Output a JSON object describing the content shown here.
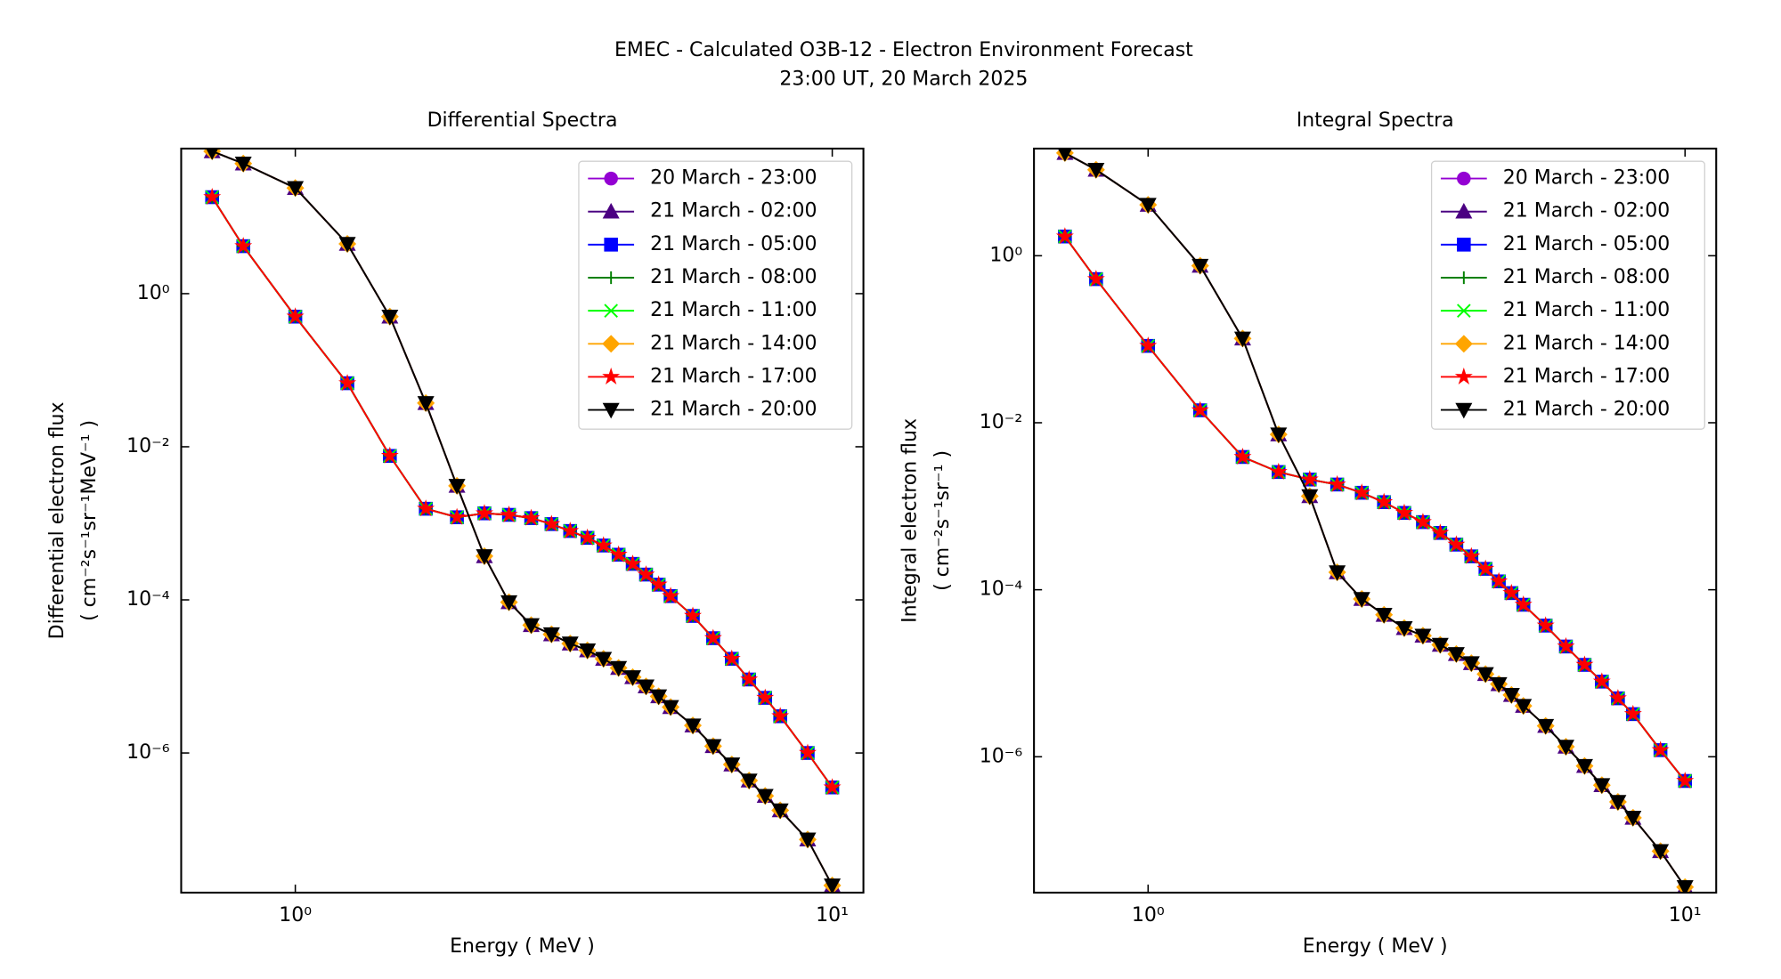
{
  "figure": {
    "title": "EMEC - Calculated O3B-12 - Electron Environment Forecast",
    "subtitle": "23:00 UT, 20 March 2025"
  },
  "chart_data": [
    {
      "type": "line",
      "title": "Differential Spectra",
      "xlabel": "Energy ( MeV )",
      "ylabel": [
        "Differential electron flux",
        "( cm⁻²s⁻¹sr⁻¹MeV⁻¹ )"
      ],
      "xscale": "log",
      "yscale": "log",
      "xlim": [
        0.613,
        11.43
      ],
      "ylim": [
        1.5e-08,
        78.5
      ],
      "xticks": [
        {
          "value": 1,
          "label": "10⁰"
        },
        {
          "value": 10,
          "label": "10¹"
        }
      ],
      "yticks": [
        {
          "value": 1,
          "label": "10⁰"
        },
        {
          "value": 0.01,
          "label": "10⁻²"
        },
        {
          "value": 0.0001,
          "label": "10⁻⁴"
        },
        {
          "value": 1e-06,
          "label": "10⁻⁶"
        }
      ],
      "legend": "upper right",
      "x": [
        0.7,
        0.8,
        1,
        1.25,
        1.5,
        1.75,
        2,
        2.25,
        2.5,
        2.75,
        3,
        3.25,
        3.5,
        3.75,
        4,
        4.25,
        4.5,
        4.75,
        5,
        5.5,
        6,
        6.5,
        7,
        7.5,
        8,
        9,
        10
      ],
      "series": [
        {
          "name": "20 March - 23:00",
          "color": "#9400d3",
          "marker": "circle",
          "values": [
            72.4,
            50.1,
            24,
            4.47,
            0.501,
            0.0372,
            0.00309,
            0.000372,
            9.33e-05,
            4.68e-05,
            3.55e-05,
            2.69e-05,
            2.19e-05,
            1.7e-05,
            1.29e-05,
            9.77e-06,
            7.41e-06,
            5.5e-06,
            3.98e-06,
            2.29e-06,
            1.23e-06,
            7.08e-07,
            4.37e-07,
            2.75e-07,
            1.78e-07,
            7.41e-08,
            1.86e-08
          ]
        },
        {
          "name": "21 March - 02:00",
          "color": "#4b0082",
          "marker": "triangle-up",
          "values": [
            72.4,
            50.1,
            24,
            4.47,
            0.501,
            0.0372,
            0.00309,
            0.000372,
            9.33e-05,
            4.68e-05,
            3.55e-05,
            2.69e-05,
            2.19e-05,
            1.7e-05,
            1.29e-05,
            9.77e-06,
            7.41e-06,
            5.5e-06,
            3.98e-06,
            2.29e-06,
            1.23e-06,
            7.08e-07,
            4.37e-07,
            2.75e-07,
            1.78e-07,
            7.41e-08,
            1.86e-08
          ]
        },
        {
          "name": "21 March - 05:00",
          "color": "#0000ff",
          "marker": "square",
          "values": [
            18.2,
            4.17,
            0.501,
            0.0676,
            0.00759,
            0.00155,
            0.0012,
            0.00135,
            0.00129,
            0.00117,
            0.000977,
            0.000794,
            0.000646,
            0.000513,
            0.000389,
            0.000295,
            0.000214,
            0.000158,
            0.000112,
            6.17e-05,
            3.16e-05,
            1.7e-05,
            9.12e-06,
            5.25e-06,
            3.02e-06,
            1e-06,
            3.55e-07
          ]
        },
        {
          "name": "21 March - 08:00",
          "color": "#008000",
          "marker": "plus",
          "values": [
            18.2,
            4.17,
            0.501,
            0.0676,
            0.00759,
            0.00155,
            0.0012,
            0.00135,
            0.00129,
            0.00117,
            0.000977,
            0.000794,
            0.000646,
            0.000513,
            0.000389,
            0.000295,
            0.000214,
            0.000158,
            0.000112,
            6.17e-05,
            3.16e-05,
            1.7e-05,
            9.12e-06,
            5.25e-06,
            3.02e-06,
            1e-06,
            3.55e-07
          ]
        },
        {
          "name": "21 March - 11:00",
          "color": "#00ff00",
          "marker": "x",
          "values": [
            18.2,
            4.17,
            0.501,
            0.0676,
            0.00759,
            0.00155,
            0.0012,
            0.00135,
            0.00129,
            0.00117,
            0.000977,
            0.000794,
            0.000646,
            0.000513,
            0.000389,
            0.000295,
            0.000214,
            0.000158,
            0.000112,
            6.17e-05,
            3.16e-05,
            1.7e-05,
            9.12e-06,
            5.25e-06,
            3.02e-06,
            1e-06,
            3.55e-07
          ]
        },
        {
          "name": "21 March - 14:00",
          "color": "#ffa500",
          "marker": "diamond",
          "values": [
            72.4,
            50.1,
            24,
            4.47,
            0.501,
            0.0372,
            0.00309,
            0.000372,
            9.33e-05,
            4.68e-05,
            3.55e-05,
            2.69e-05,
            2.19e-05,
            1.7e-05,
            1.29e-05,
            9.77e-06,
            7.41e-06,
            5.5e-06,
            3.98e-06,
            2.29e-06,
            1.23e-06,
            7.08e-07,
            4.37e-07,
            2.75e-07,
            1.78e-07,
            7.41e-08,
            1.86e-08
          ]
        },
        {
          "name": "21 March - 17:00",
          "color": "#ff0000",
          "marker": "star",
          "values": [
            18.2,
            4.17,
            0.501,
            0.0676,
            0.00759,
            0.00155,
            0.0012,
            0.00135,
            0.00129,
            0.00117,
            0.000977,
            0.000794,
            0.000646,
            0.000513,
            0.000389,
            0.000295,
            0.000214,
            0.000158,
            0.000112,
            6.17e-05,
            3.16e-05,
            1.7e-05,
            9.12e-06,
            5.25e-06,
            3.02e-06,
            1e-06,
            3.55e-07
          ]
        },
        {
          "name": "21 March - 20:00",
          "color": "#000000",
          "marker": "triangle-down",
          "values": [
            72.4,
            50.1,
            24,
            4.47,
            0.501,
            0.0372,
            0.00309,
            0.000372,
            9.33e-05,
            4.68e-05,
            3.55e-05,
            2.69e-05,
            2.19e-05,
            1.7e-05,
            1.29e-05,
            9.77e-06,
            7.41e-06,
            5.5e-06,
            3.98e-06,
            2.29e-06,
            1.23e-06,
            7.08e-07,
            4.37e-07,
            2.75e-07,
            1.78e-07,
            7.41e-08,
            1.86e-08
          ]
        }
      ]
    },
    {
      "type": "line",
      "title": "Integral Spectra",
      "xlabel": "Energy ( MeV )",
      "ylabel": [
        "Integral electron flux",
        "( cm⁻²s⁻¹sr⁻¹ )"
      ],
      "xscale": "log",
      "yscale": "log",
      "xlim": [
        0.613,
        11.43
      ],
      "ylim": [
        2.36e-08,
        19.2
      ],
      "xticks": [
        {
          "value": 1,
          "label": "10⁰"
        },
        {
          "value": 10,
          "label": "10¹"
        }
      ],
      "yticks": [
        {
          "value": 1,
          "label": "10⁰"
        },
        {
          "value": 0.01,
          "label": "10⁻²"
        },
        {
          "value": 0.0001,
          "label": "10⁻⁴"
        },
        {
          "value": 1e-06,
          "label": "10⁻⁶"
        }
      ],
      "legend": "upper right",
      "x": [
        0.7,
        0.8,
        1,
        1.25,
        1.5,
        1.75,
        2,
        2.25,
        2.5,
        2.75,
        3,
        3.25,
        3.5,
        3.75,
        4,
        4.25,
        4.5,
        4.75,
        5,
        5.5,
        6,
        6.5,
        7,
        7.5,
        8,
        9,
        10
      ],
      "series": [
        {
          "name": "20 March - 23:00",
          "color": "#9400d3",
          "marker": "circle",
          "values": [
            17,
            10.7,
            4.07,
            0.759,
            0.102,
            0.00724,
            0.00132,
            0.000162,
            7.76e-05,
            5.01e-05,
            3.47e-05,
            2.82e-05,
            2.19e-05,
            1.7e-05,
            1.32e-05,
            9.77e-06,
            7.41e-06,
            5.5e-06,
            4.07e-06,
            2.34e-06,
            1.32e-06,
            7.76e-07,
            4.57e-07,
            2.88e-07,
            1.86e-07,
            7.41e-08,
            2.75e-08
          ]
        },
        {
          "name": "21 March - 02:00",
          "color": "#4b0082",
          "marker": "triangle-up",
          "values": [
            17,
            10.7,
            4.07,
            0.759,
            0.102,
            0.00724,
            0.00132,
            0.000162,
            7.76e-05,
            5.01e-05,
            3.47e-05,
            2.82e-05,
            2.19e-05,
            1.7e-05,
            1.32e-05,
            9.77e-06,
            7.41e-06,
            5.5e-06,
            4.07e-06,
            2.34e-06,
            1.32e-06,
            7.76e-07,
            4.57e-07,
            2.88e-07,
            1.86e-07,
            7.41e-08,
            2.75e-08
          ]
        },
        {
          "name": "21 March - 05:00",
          "color": "#0000ff",
          "marker": "square",
          "values": [
            1.7,
            0.525,
            0.0832,
            0.0141,
            0.00389,
            0.00257,
            0.00209,
            0.00182,
            0.00145,
            0.00112,
            0.000832,
            0.000646,
            0.000479,
            0.000347,
            0.000251,
            0.000178,
            0.000126,
            9.12e-05,
            6.61e-05,
            3.72e-05,
            2.09e-05,
            1.26e-05,
            7.94e-06,
            5.01e-06,
            3.24e-06,
            1.2e-06,
            5.13e-07
          ]
        },
        {
          "name": "21 March - 08:00",
          "color": "#008000",
          "marker": "plus",
          "values": [
            1.7,
            0.525,
            0.0832,
            0.0141,
            0.00389,
            0.00257,
            0.00209,
            0.00182,
            0.00145,
            0.00112,
            0.000832,
            0.000646,
            0.000479,
            0.000347,
            0.000251,
            0.000178,
            0.000126,
            9.12e-05,
            6.61e-05,
            3.72e-05,
            2.09e-05,
            1.26e-05,
            7.94e-06,
            5.01e-06,
            3.24e-06,
            1.2e-06,
            5.13e-07
          ]
        },
        {
          "name": "21 March - 11:00",
          "color": "#00ff00",
          "marker": "x",
          "values": [
            1.7,
            0.525,
            0.0832,
            0.0141,
            0.00389,
            0.00257,
            0.00209,
            0.00182,
            0.00145,
            0.00112,
            0.000832,
            0.000646,
            0.000479,
            0.000347,
            0.000251,
            0.000178,
            0.000126,
            9.12e-05,
            6.61e-05,
            3.72e-05,
            2.09e-05,
            1.26e-05,
            7.94e-06,
            5.01e-06,
            3.24e-06,
            1.2e-06,
            5.13e-07
          ]
        },
        {
          "name": "21 March - 14:00",
          "color": "#ffa500",
          "marker": "diamond",
          "values": [
            17,
            10.7,
            4.07,
            0.759,
            0.102,
            0.00724,
            0.00132,
            0.000162,
            7.76e-05,
            5.01e-05,
            3.47e-05,
            2.82e-05,
            2.19e-05,
            1.7e-05,
            1.32e-05,
            9.77e-06,
            7.41e-06,
            5.5e-06,
            4.07e-06,
            2.34e-06,
            1.32e-06,
            7.76e-07,
            4.57e-07,
            2.88e-07,
            1.86e-07,
            7.41e-08,
            2.75e-08
          ]
        },
        {
          "name": "21 March - 17:00",
          "color": "#ff0000",
          "marker": "star",
          "values": [
            1.7,
            0.525,
            0.0832,
            0.0141,
            0.00389,
            0.00257,
            0.00209,
            0.00182,
            0.00145,
            0.00112,
            0.000832,
            0.000646,
            0.000479,
            0.000347,
            0.000251,
            0.000178,
            0.000126,
            9.12e-05,
            6.61e-05,
            3.72e-05,
            2.09e-05,
            1.26e-05,
            7.94e-06,
            5.01e-06,
            3.24e-06,
            1.2e-06,
            5.13e-07
          ]
        },
        {
          "name": "21 March - 20:00",
          "color": "#000000",
          "marker": "triangle-down",
          "values": [
            17,
            10.7,
            4.07,
            0.759,
            0.102,
            0.00724,
            0.00132,
            0.000162,
            7.76e-05,
            5.01e-05,
            3.47e-05,
            2.82e-05,
            2.19e-05,
            1.7e-05,
            1.32e-05,
            9.77e-06,
            7.41e-06,
            5.5e-06,
            4.07e-06,
            2.34e-06,
            1.32e-06,
            7.76e-07,
            4.57e-07,
            2.88e-07,
            1.86e-07,
            7.41e-08,
            2.75e-08
          ]
        }
      ]
    }
  ]
}
